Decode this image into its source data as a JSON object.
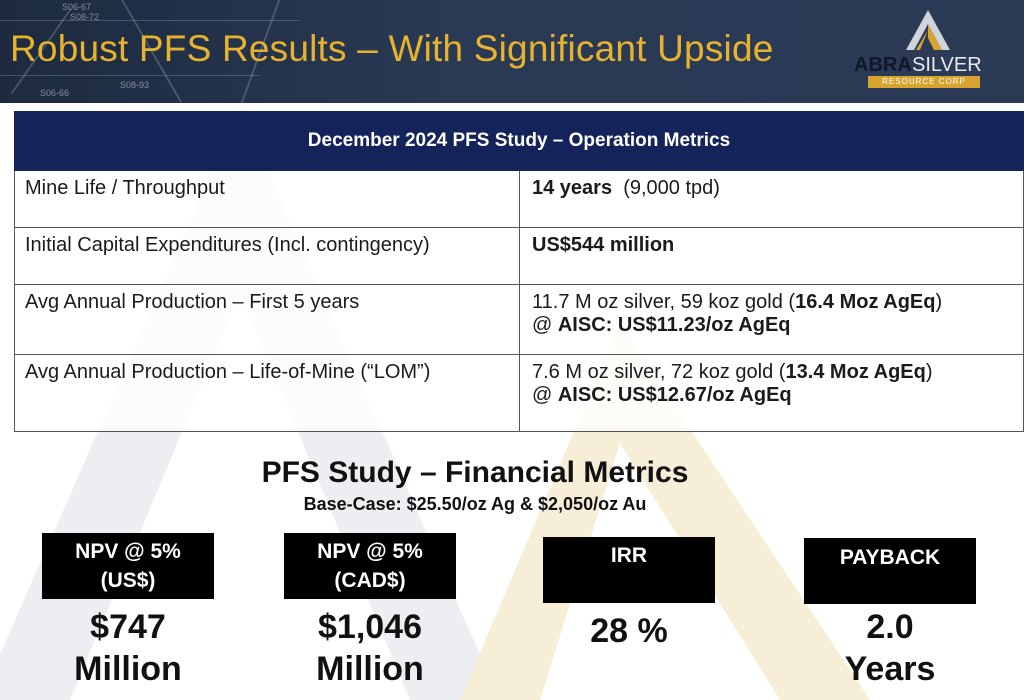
{
  "slide": {
    "title": "Robust PFS Results – With Significant Upside"
  },
  "logo": {
    "word1": "ABRA",
    "word2": "SILVER",
    "tagline": "RESOURCE CORP"
  },
  "map_labels": [
    "S06-67",
    "S08-72",
    "S06-66",
    "S08-93"
  ],
  "operations": {
    "header": "December 2024 PFS Study – Operation Metrics",
    "rows": [
      {
        "label": "Mine Life / Throughput",
        "value_bold": "14 years",
        "value_rest": "(9,000 tpd)"
      },
      {
        "label": "Initial Capital Expenditures (Incl. contingency)",
        "value_bold": "US$544 million"
      },
      {
        "label": "Avg Annual Production – First 5 years",
        "value_plain": "11.7 M oz silver,  59 koz gold  (",
        "value_bold": "16.4 Moz AgEq",
        "value_close": ")",
        "line2_prefix": "@ ",
        "line2_bold": "AISC: US$11.23/oz AgEq"
      },
      {
        "label": "Avg Annual Production – Life-of-Mine (“LOM”)",
        "value_plain": "7.6 M oz silver,  72 koz gold  (",
        "value_bold": "13.4 Moz AgEq",
        "value_close": ")",
        "line2_prefix": "@ ",
        "line2_bold": "AISC: US$12.67/oz AgEq"
      }
    ]
  },
  "financial": {
    "title": "PFS Study – Financial Metrics",
    "subtitle": "Base-Case: $25.50/oz Ag & $2,050/oz Au",
    "metrics": [
      {
        "label_line1": "NPV @ 5%",
        "label_line2": "(US$)",
        "value_line1": "$747",
        "value_line2": "Million"
      },
      {
        "label_line1": "NPV @ 5%",
        "label_line2": "(CAD$)",
        "value_line1": "$1,046",
        "value_line2": "Million"
      },
      {
        "label_line1": "IRR",
        "label_line2": "",
        "value_line1": "28 %",
        "value_line2": ""
      },
      {
        "label_line1": "PAYBACK",
        "label_line2": "",
        "value_line1": "2.0",
        "value_line2": "Years"
      }
    ]
  },
  "colors": {
    "header_bg": "#1d2a3f",
    "title_gold": "#e7b32e",
    "table_header_bg": "#14235a",
    "metric_label_bg": "#000000"
  }
}
